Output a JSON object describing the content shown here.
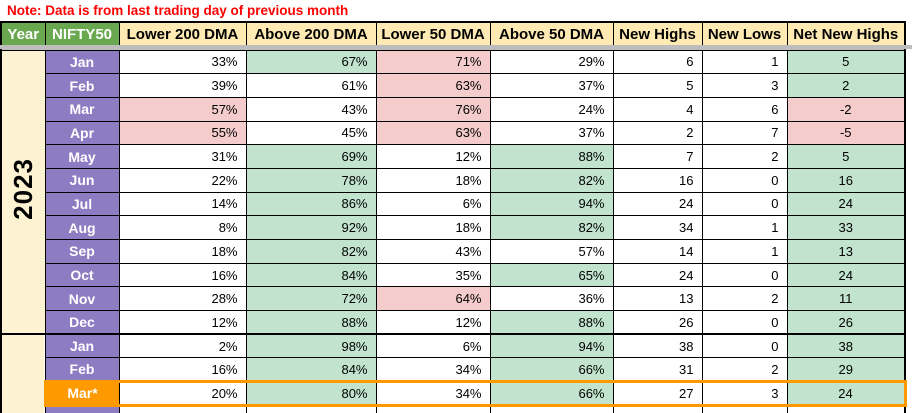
{
  "note": "Note: Data is from last trading day of previous month",
  "colors": {
    "green_cell": "#c2e4ce",
    "pink_cell": "#f4cccc",
    "purple_month": "#8e7cc3",
    "orange_highlight": "#ff9900",
    "header_green": "#6aa84f",
    "header_cream": "#ffeab3",
    "year_cream": "#fdf2d2",
    "note_red": "#ff0000",
    "freeze_gray": "#bdbdbd"
  },
  "columns": [
    "Year",
    "NIFTY50",
    "Lower 200 DMA",
    "Above 200 DMA",
    "Lower 50 DMA",
    "Above 50 DMA",
    "New Highs",
    "New Lows",
    "Net New Highs"
  ],
  "groups": [
    {
      "year_label": "2023",
      "partial_row": false,
      "rows": [
        {
          "month": "Jan",
          "highlight": false,
          "values": [
            "33%",
            "67%",
            "71%",
            "29%",
            "6",
            "1",
            "5"
          ],
          "styles": [
            "w",
            "g",
            "p",
            "w",
            "w",
            "w",
            "g"
          ]
        },
        {
          "month": "Feb",
          "highlight": false,
          "values": [
            "39%",
            "61%",
            "63%",
            "37%",
            "5",
            "3",
            "2"
          ],
          "styles": [
            "w",
            "w",
            "p",
            "w",
            "w",
            "w",
            "g"
          ]
        },
        {
          "month": "Mar",
          "highlight": false,
          "values": [
            "57%",
            "43%",
            "76%",
            "24%",
            "4",
            "6",
            "-2"
          ],
          "styles": [
            "p",
            "w",
            "p",
            "w",
            "w",
            "w",
            "p"
          ]
        },
        {
          "month": "Apr",
          "highlight": false,
          "values": [
            "55%",
            "45%",
            "63%",
            "37%",
            "2",
            "7",
            "-5"
          ],
          "styles": [
            "p",
            "w",
            "p",
            "w",
            "w",
            "w",
            "p"
          ]
        },
        {
          "month": "May",
          "highlight": false,
          "values": [
            "31%",
            "69%",
            "12%",
            "88%",
            "7",
            "2",
            "5"
          ],
          "styles": [
            "w",
            "g",
            "w",
            "g",
            "w",
            "w",
            "g"
          ]
        },
        {
          "month": "Jun",
          "highlight": false,
          "values": [
            "22%",
            "78%",
            "18%",
            "82%",
            "16",
            "0",
            "16"
          ],
          "styles": [
            "w",
            "g",
            "w",
            "g",
            "w",
            "w",
            "g"
          ]
        },
        {
          "month": "Jul",
          "highlight": false,
          "values": [
            "14%",
            "86%",
            "6%",
            "94%",
            "24",
            "0",
            "24"
          ],
          "styles": [
            "w",
            "g",
            "w",
            "g",
            "w",
            "w",
            "g"
          ]
        },
        {
          "month": "Aug",
          "highlight": false,
          "values": [
            "8%",
            "92%",
            "18%",
            "82%",
            "34",
            "1",
            "33"
          ],
          "styles": [
            "w",
            "g",
            "w",
            "g",
            "w",
            "w",
            "g"
          ]
        },
        {
          "month": "Sep",
          "highlight": false,
          "values": [
            "18%",
            "82%",
            "43%",
            "57%",
            "14",
            "1",
            "13"
          ],
          "styles": [
            "w",
            "g",
            "w",
            "w",
            "w",
            "w",
            "g"
          ]
        },
        {
          "month": "Oct",
          "highlight": false,
          "values": [
            "16%",
            "84%",
            "35%",
            "65%",
            "24",
            "0",
            "24"
          ],
          "styles": [
            "w",
            "g",
            "w",
            "g",
            "w",
            "w",
            "g"
          ]
        },
        {
          "month": "Nov",
          "highlight": false,
          "values": [
            "28%",
            "72%",
            "64%",
            "36%",
            "13",
            "2",
            "11"
          ],
          "styles": [
            "w",
            "g",
            "p",
            "w",
            "w",
            "w",
            "g"
          ]
        },
        {
          "month": "Dec",
          "highlight": false,
          "values": [
            "12%",
            "88%",
            "12%",
            "88%",
            "26",
            "0",
            "26"
          ],
          "styles": [
            "w",
            "g",
            "w",
            "g",
            "w",
            "w",
            "g"
          ]
        }
      ]
    },
    {
      "year_label": "",
      "partial_row": true,
      "rows": [
        {
          "month": "Jan",
          "highlight": false,
          "values": [
            "2%",
            "98%",
            "6%",
            "94%",
            "38",
            "0",
            "38"
          ],
          "styles": [
            "w",
            "g",
            "w",
            "g",
            "w",
            "w",
            "g"
          ]
        },
        {
          "month": "Feb",
          "highlight": false,
          "values": [
            "16%",
            "84%",
            "34%",
            "66%",
            "31",
            "2",
            "29"
          ],
          "styles": [
            "w",
            "g",
            "w",
            "g",
            "w",
            "w",
            "g"
          ]
        },
        {
          "month": "Mar*",
          "highlight": true,
          "values": [
            "20%",
            "80%",
            "34%",
            "66%",
            "27",
            "3",
            "24"
          ],
          "styles": [
            "w",
            "g",
            "w",
            "g",
            "w",
            "w",
            "g"
          ]
        }
      ]
    }
  ]
}
